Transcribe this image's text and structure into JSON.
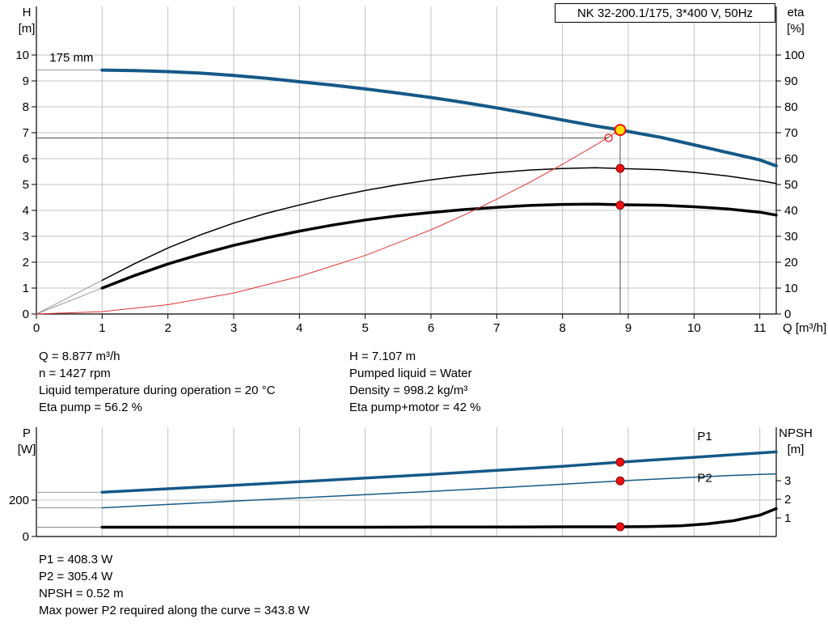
{
  "title_box": {
    "label": "NK 32-200.1/175, 3*400 V, 50Hz"
  },
  "colors": {
    "blue": "#155987",
    "red_curve": "#dd3333",
    "marker_red": "#ee1111",
    "marker_red_edge": "#7d0808",
    "marker_yellow": "#ffdf00",
    "grid": "#c3c3c3",
    "axis": "#000000",
    "lead": "#8a8a8a",
    "crosshair": "#3c3c3c"
  },
  "info_top": {
    "left": [
      "Q = 8.877 m³/h",
      "n = 1427 rpm",
      "Liquid temperature during operation = 20 °C",
      "Eta pump = 56.2 %"
    ],
    "right": [
      "H = 7.107 m",
      "Pumped liquid = Water",
      "Density = 998.2 kg/m³",
      "Eta pump+motor = 42 %"
    ]
  },
  "info_bottom": [
    "P1 = 408.3 W",
    "P2 = 305.4 W",
    "NPSH = 0.52 m",
    "Max power P2 required along the curve = 343.8 W"
  ],
  "chart_data": [
    {
      "type": "line",
      "title": "NK 32-200.1/175, 3*400 V, 50Hz",
      "x": {
        "label": "Q [m³/h]",
        "min": 0,
        "max": 11.25,
        "ticks": [
          0,
          1,
          2,
          3,
          4,
          5,
          6,
          7,
          8,
          9,
          10,
          11
        ],
        "show_labels": true
      },
      "y_left": {
        "label_lines": [
          "H",
          "[m]"
        ],
        "min": 0,
        "max": 10,
        "ticks": [
          0,
          1,
          2,
          3,
          4,
          5,
          6,
          7,
          8,
          9,
          10
        ],
        "grid": [
          1,
          2,
          3,
          4,
          5,
          6,
          7,
          8,
          9,
          10
        ]
      },
      "y_right": {
        "label_lines": [
          "eta",
          "[%]"
        ],
        "min": 0,
        "max": 100,
        "ticks": [
          0,
          10,
          20,
          30,
          40,
          50,
          60,
          70,
          80,
          90,
          100
        ]
      },
      "series": [
        {
          "name": "head-curve",
          "label": "175 mm",
          "axis": "left",
          "color": "#155987",
          "width": 4,
          "lead": [
            0,
            9.42
          ],
          "points": [
            [
              1,
              9.42
            ],
            [
              1.5,
              9.4
            ],
            [
              2,
              9.36
            ],
            [
              2.5,
              9.3
            ],
            [
              3,
              9.21
            ],
            [
              3.5,
              9.1
            ],
            [
              4,
              8.97
            ],
            [
              4.5,
              8.84
            ],
            [
              5,
              8.69
            ],
            [
              5.5,
              8.53
            ],
            [
              6,
              8.36
            ],
            [
              6.5,
              8.17
            ],
            [
              7,
              7.96
            ],
            [
              7.5,
              7.73
            ],
            [
              8,
              7.49
            ],
            [
              8.5,
              7.26
            ],
            [
              8.877,
              7.107
            ],
            [
              9.5,
              6.82
            ],
            [
              10,
              6.53
            ],
            [
              10.5,
              6.24
            ],
            [
              11,
              5.95
            ],
            [
              11.25,
              5.72
            ]
          ]
        },
        {
          "name": "eta-pump-curve",
          "axis": "right",
          "color": "#000000",
          "width": 1.5,
          "lead": [
            0,
            0
          ],
          "points": [
            [
              1,
              13
            ],
            [
              1.5,
              19.5
            ],
            [
              2,
              25.5
            ],
            [
              2.5,
              30.6
            ],
            [
              3,
              35.1
            ],
            [
              3.5,
              38.9
            ],
            [
              4,
              42.1
            ],
            [
              4.5,
              45.1
            ],
            [
              5,
              47.7
            ],
            [
              5.5,
              49.9
            ],
            [
              6,
              51.8
            ],
            [
              6.5,
              53.4
            ],
            [
              7,
              54.6
            ],
            [
              7.5,
              55.6
            ],
            [
              8,
              56.2
            ],
            [
              8.5,
              56.5
            ],
            [
              8.877,
              56.2
            ],
            [
              9.5,
              55.7
            ],
            [
              10,
              54.7
            ],
            [
              10.5,
              53.3
            ],
            [
              11,
              51.5
            ],
            [
              11.25,
              50.4
            ]
          ]
        },
        {
          "name": "eta-pump-motor-curve",
          "axis": "right",
          "color": "#000000",
          "width": 3.5,
          "lead": [
            0,
            0
          ],
          "points": [
            [
              1,
              10
            ],
            [
              1.5,
              14.9
            ],
            [
              2,
              19.3
            ],
            [
              2.5,
              23.1
            ],
            [
              3,
              26.5
            ],
            [
              3.5,
              29.4
            ],
            [
              4,
              32
            ],
            [
              4.5,
              34.3
            ],
            [
              5,
              36.3
            ],
            [
              5.5,
              37.9
            ],
            [
              6,
              39.2
            ],
            [
              6.5,
              40.3
            ],
            [
              7,
              41.2
            ],
            [
              7.5,
              41.9
            ],
            [
              8,
              42.3
            ],
            [
              8.5,
              42.4
            ],
            [
              8.877,
              42.2
            ],
            [
              9.5,
              42
            ],
            [
              10,
              41.4
            ],
            [
              10.5,
              40.6
            ],
            [
              11,
              39.3
            ],
            [
              11.25,
              38.2
            ]
          ]
        },
        {
          "name": "system-curve",
          "axis": "left",
          "color": "#dd3333",
          "width": 1,
          "points": [
            [
              0,
              0
            ],
            [
              1,
              0.09
            ],
            [
              2,
              0.36
            ],
            [
              3,
              0.81
            ],
            [
              4,
              1.45
            ],
            [
              5,
              2.26
            ],
            [
              6,
              3.25
            ],
            [
              6.5,
              3.82
            ],
            [
              7,
              4.43
            ],
            [
              7.5,
              5.08
            ],
            [
              8,
              5.78
            ],
            [
              8.5,
              6.52
            ],
            [
              8.877,
              7.107
            ]
          ]
        }
      ],
      "crosshair": {
        "vx": 8.877,
        "v_top": 7.107,
        "hx": 8.7,
        "hy": 6.8
      },
      "markers": [
        {
          "name": "requested-duty-point",
          "axis": "left",
          "x": 8.7,
          "y": 6.8,
          "style": "open"
        },
        {
          "name": "eta-pump-duty-point",
          "axis": "right",
          "x": 8.877,
          "y": 56.2,
          "style": "red"
        },
        {
          "name": "eta-pump-motor-duty-point",
          "axis": "right",
          "x": 8.877,
          "y": 42,
          "style": "red"
        },
        {
          "name": "operating-point",
          "axis": "left",
          "x": 8.877,
          "y": 7.107,
          "style": "yellow"
        }
      ],
      "labels": [
        {
          "name": "impeller-diameter-label",
          "text": "175 mm",
          "axis": "left",
          "x": 0.2,
          "y": 9.75,
          "color": "#000000"
        }
      ]
    },
    {
      "type": "line",
      "title": "Power and NPSH curves",
      "x": {
        "label": "",
        "min": 0,
        "max": 11.25,
        "ticks": [
          1,
          2,
          3,
          4,
          5,
          6,
          7,
          8,
          9,
          10,
          11
        ],
        "show_labels": false
      },
      "y_left": {
        "label_lines": [
          "P",
          "[W]"
        ],
        "min": 0,
        "max": 600,
        "ticks": [
          0,
          200
        ],
        "grid": [
          200
        ]
      },
      "y_right": {
        "label_lines": [
          "NPSH",
          "[m]"
        ],
        "min": 0,
        "max": 5.87,
        "ticks": [
          1,
          2,
          3
        ]
      },
      "series": [
        {
          "name": "p1-power-curve",
          "label": "P1",
          "axis": "left",
          "color": "#155987",
          "width": 3.5,
          "lead": [
            0,
            243
          ],
          "points": [
            [
              1,
              243
            ],
            [
              2,
              262
            ],
            [
              3,
              281
            ],
            [
              4,
              301
            ],
            [
              5,
              321
            ],
            [
              6,
              341
            ],
            [
              7,
              363
            ],
            [
              8,
              386
            ],
            [
              8.877,
              408.3
            ],
            [
              9.5,
              423
            ],
            [
              10,
              435
            ],
            [
              10.5,
              447
            ],
            [
              11,
              459
            ],
            [
              11.25,
              465
            ]
          ]
        },
        {
          "name": "p2-power-curve",
          "label": "P2",
          "axis": "left",
          "color": "#155987",
          "width": 1.5,
          "lead": [
            0,
            158
          ],
          "points": [
            [
              1,
              158
            ],
            [
              2,
              176
            ],
            [
              3,
              194
            ],
            [
              4,
              212
            ],
            [
              5,
              230
            ],
            [
              6,
              248
            ],
            [
              7,
              267
            ],
            [
              8,
              287
            ],
            [
              8.877,
              305.4
            ],
            [
              9.5,
              317
            ],
            [
              10,
              326
            ],
            [
              10.5,
              334
            ],
            [
              11,
              341
            ],
            [
              11.25,
              343.8
            ]
          ]
        },
        {
          "name": "npsh-curve",
          "axis": "right",
          "color": "#000000",
          "width": 3.5,
          "lead": [
            0,
            0.5
          ],
          "points": [
            [
              1,
              0.5
            ],
            [
              2,
              0.5
            ],
            [
              3,
              0.5
            ],
            [
              4,
              0.5
            ],
            [
              5,
              0.5
            ],
            [
              6,
              0.51
            ],
            [
              7,
              0.51
            ],
            [
              8,
              0.52
            ],
            [
              8.877,
              0.52
            ],
            [
              9.3,
              0.53
            ],
            [
              9.8,
              0.58
            ],
            [
              10.2,
              0.68
            ],
            [
              10.6,
              0.85
            ],
            [
              11,
              1.15
            ],
            [
              11.25,
              1.5
            ]
          ]
        }
      ],
      "markers": [
        {
          "name": "p1-duty-point",
          "axis": "left",
          "x": 8.877,
          "y": 408.3,
          "style": "red"
        },
        {
          "name": "p2-duty-point",
          "axis": "left",
          "x": 8.877,
          "y": 305.4,
          "style": "red"
        },
        {
          "name": "npsh-duty-point",
          "axis": "right",
          "x": 8.877,
          "y": 0.52,
          "style": "red"
        }
      ],
      "labels": [
        {
          "name": "p1-curve-label",
          "text": "P1",
          "axis": "left",
          "x": 10.05,
          "y": 530,
          "color": "#155987"
        },
        {
          "name": "p2-curve-label",
          "text": "P2",
          "axis": "left",
          "x": 10.05,
          "y": 300,
          "color": "#155987"
        }
      ]
    }
  ]
}
